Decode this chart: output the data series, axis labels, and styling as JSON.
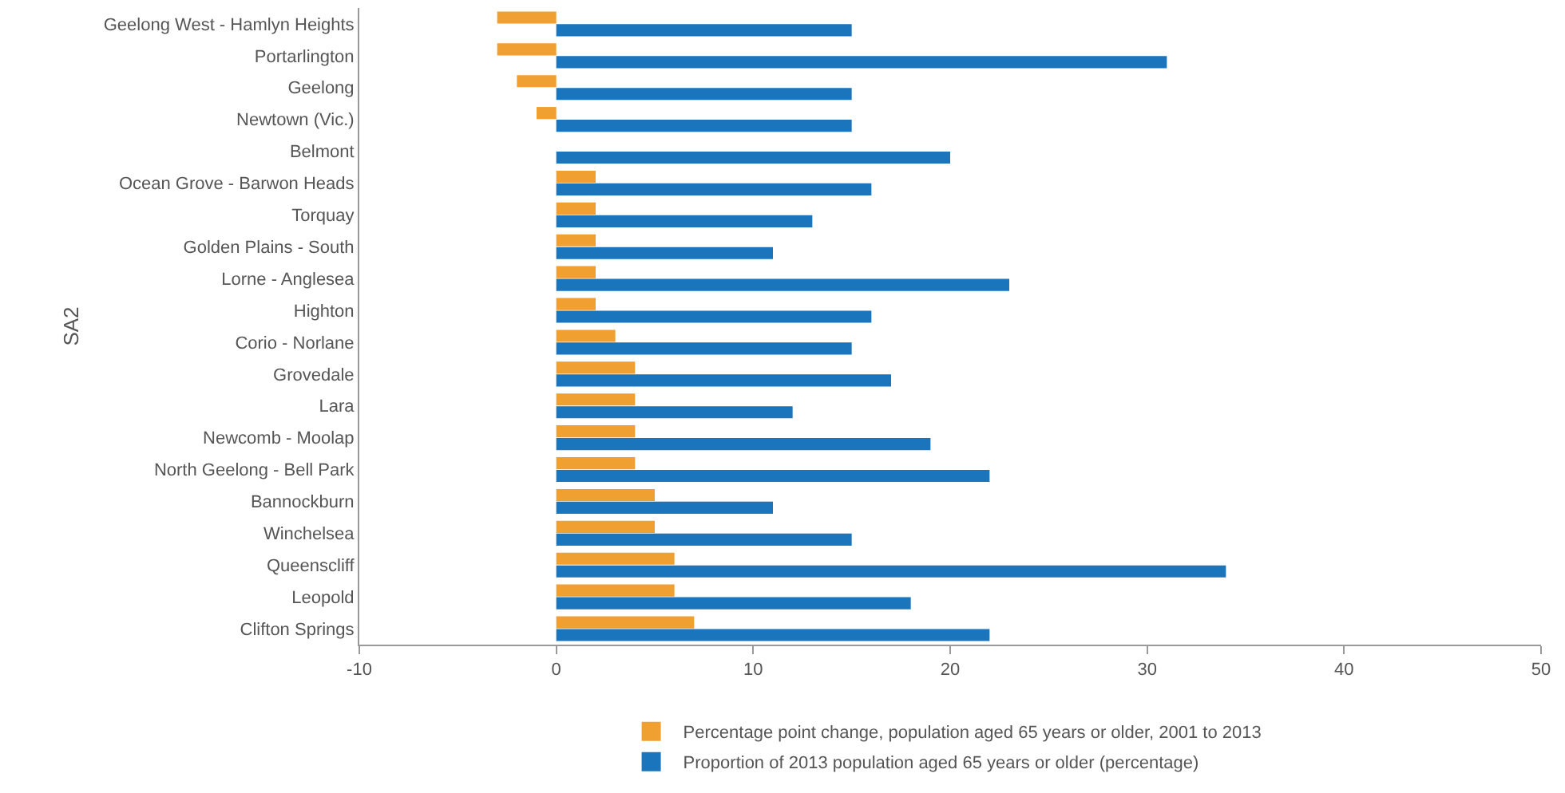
{
  "chart_data": {
    "type": "bar",
    "orientation": "horizontal",
    "ylabel": "SA2",
    "categories": [
      "Geelong West - Hamlyn Heights",
      "Portarlington",
      "Geelong",
      "Newtown (Vic.)",
      "Belmont",
      "Ocean Grove - Barwon Heads",
      "Torquay",
      "Golden Plains - South",
      "Lorne - Anglesea",
      "Highton",
      "Corio - Norlane",
      "Grovedale",
      "Lara",
      "Newcomb - Moolap",
      "North Geelong - Bell Park",
      "Bannockburn",
      "Winchelsea",
      "Queenscliff",
      "Leopold",
      "Clifton Springs"
    ],
    "series": [
      {
        "name": "Percentage point change, population aged 65 years or older, 2001 to 2013",
        "color": "#f0a030",
        "values": [
          -3,
          -3,
          -2,
          -1,
          0,
          2,
          2,
          2,
          2,
          2,
          3,
          4,
          4,
          4,
          4,
          5,
          5,
          6,
          6,
          7
        ]
      },
      {
        "name": "Proportion of 2013 population aged 65 years or older (percentage)",
        "color": "#1a75bc",
        "values": [
          15,
          31,
          15,
          15,
          20,
          16,
          13,
          11,
          23,
          16,
          15,
          17,
          12,
          19,
          22,
          11,
          15,
          34,
          18,
          22
        ]
      }
    ],
    "xlim": [
      -10,
      50
    ],
    "xticks": [
      -10,
      0,
      10,
      20,
      30,
      40,
      50
    ],
    "grid": false,
    "legend": "bottom"
  }
}
